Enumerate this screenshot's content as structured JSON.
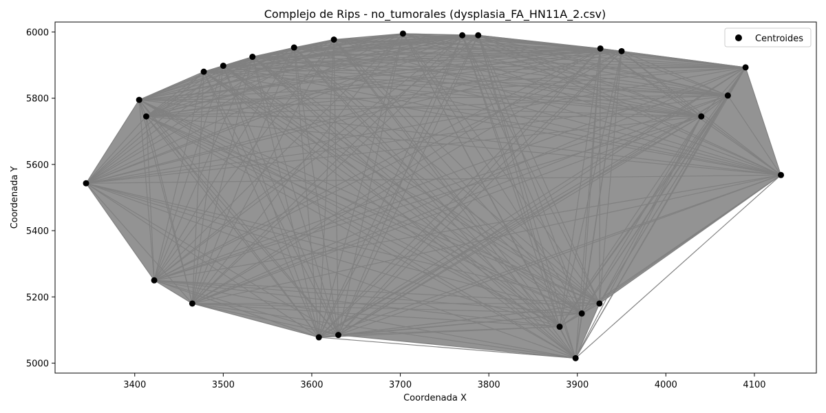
{
  "chart_data": {
    "type": "scatter",
    "title": "Complejo de Rips - no_tumorales (dysplasia_FA_HN11A_2.csv)",
    "xlabel": "Coordenada X",
    "ylabel": "Coordenada Y",
    "xlim": [
      3310,
      4170
    ],
    "ylim": [
      4970,
      6030
    ],
    "xticks": [
      3400,
      3500,
      3600,
      3700,
      3800,
      3900,
      4000,
      4100
    ],
    "yticks": [
      5000,
      5200,
      5400,
      5600,
      5800,
      6000
    ],
    "grid": false,
    "legend": {
      "position": "top-right",
      "entries": [
        "Centroides"
      ]
    },
    "colors": {
      "points": "#000000",
      "edges": "#808080"
    },
    "series": [
      {
        "name": "Centroides",
        "x": [
          3345,
          3405,
          3413,
          3422,
          3465,
          3478,
          3500,
          3533,
          3580,
          3608,
          3625,
          3630,
          3703,
          3770,
          3788,
          3880,
          3898,
          3905,
          3925,
          3926,
          3950,
          4040,
          4070,
          4090,
          4130
        ],
        "y": [
          5543,
          5795,
          5745,
          5250,
          5180,
          5880,
          5898,
          5925,
          5953,
          5078,
          5977,
          5085,
          5995,
          5990,
          5990,
          5110,
          5015,
          5150,
          5180,
          5950,
          5942,
          5745,
          5808,
          5893,
          5568
        ]
      }
    ]
  }
}
